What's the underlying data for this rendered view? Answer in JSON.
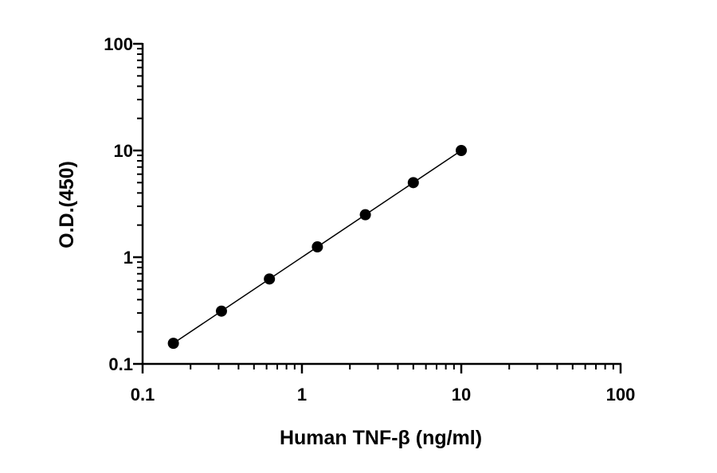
{
  "chart_data": {
    "type": "scatter",
    "xlabel": "Human TNF-β (ng/ml)",
    "ylabel": "O.D.(450)",
    "x_scale": "log",
    "y_scale": "log",
    "xlim": [
      0.1,
      100
    ],
    "ylim": [
      0.1,
      100
    ],
    "x_ticks": [
      {
        "value": 0.1,
        "label": "0.1"
      },
      {
        "value": 1,
        "label": "1"
      },
      {
        "value": 10,
        "label": "10"
      },
      {
        "value": 100,
        "label": "100"
      }
    ],
    "y_ticks": [
      {
        "value": 0.1,
        "label": "0.1"
      },
      {
        "value": 1,
        "label": "1"
      },
      {
        "value": 10,
        "label": "10"
      },
      {
        "value": 100,
        "label": "100"
      }
    ],
    "grid": false,
    "legend": "none",
    "fit_line": true,
    "series": [
      {
        "x": [
          0.156,
          0.3125,
          0.625,
          1.25,
          2.5,
          5,
          10
        ],
        "y": [
          0.156,
          0.3125,
          0.625,
          1.25,
          2.5,
          5,
          10
        ]
      }
    ],
    "colors": {
      "marker": "#000000",
      "line": "#000000",
      "axis": "#000000"
    }
  }
}
